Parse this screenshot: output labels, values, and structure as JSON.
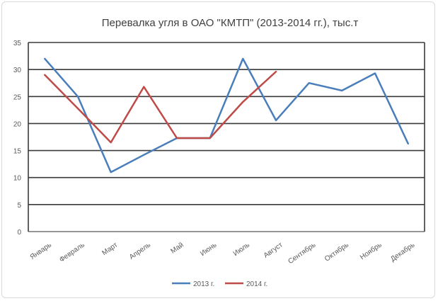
{
  "chart_data": {
    "type": "line",
    "title": "Перевалка угля в ОАО \"КМТП\" (2013-2014 гг.), тыс.т",
    "xlabel": "",
    "ylabel": "",
    "ylim": [
      0,
      35
    ],
    "yticks": [
      0,
      5,
      10,
      15,
      20,
      25,
      30,
      35
    ],
    "grid": true,
    "legend_position": "bottom",
    "categories": [
      "Январь",
      "Февраль",
      "Март",
      "Апрель",
      "Май",
      "Июнь",
      "Июль",
      "Август",
      "Сентябрь",
      "Октябрь",
      "Ноябрь",
      "Декабрь"
    ],
    "series": [
      {
        "name": "2013 г.",
        "color": "#4a7ebb",
        "values": [
          32,
          25,
          11,
          14.2,
          17.3,
          17.3,
          32,
          20.6,
          27.5,
          26.1,
          29.3,
          16.3
        ]
      },
      {
        "name": "2014 г.",
        "color": "#be4b48",
        "values": [
          29,
          22.8,
          16.5,
          26.8,
          17.3,
          17.3,
          24,
          29.6,
          null,
          null,
          null,
          null
        ]
      }
    ]
  }
}
